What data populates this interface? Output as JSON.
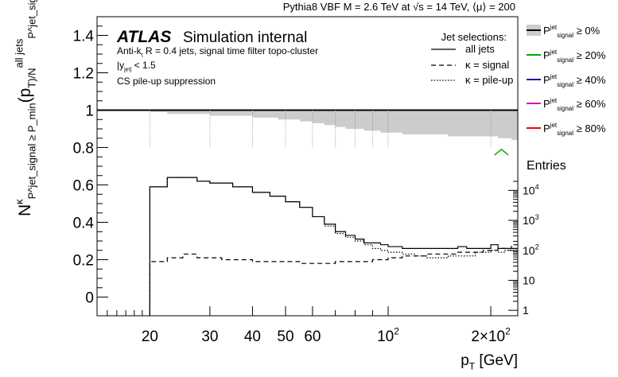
{
  "chart_data": {
    "type": "line",
    "header": "Pythia8 VBF M = 2.6 TeV at √s = 14 TeV, ⟨μ⟩ = 200",
    "title": "ATLAS",
    "subtitle": "Simulation internal",
    "info_lines": [
      "Anti-k_t R = 0.4 jets, signal time filter topo-cluster",
      "|y_jet| < 1.5",
      "CS pile-up suppression"
    ],
    "xlabel": "p_T [GeV]",
    "ylabel": "N^κ_{P^jet_signal ≥ P_min}(p_T)/N^{all jets}_{P^jet_signal ≥ 0}(p_T)",
    "x_scale": "log",
    "xlim": [
      14,
      240
    ],
    "ylim": [
      -0.1,
      1.5
    ],
    "x_ticks": [
      {
        "value": 20,
        "label": "20"
      },
      {
        "value": 30,
        "label": "30"
      },
      {
        "value": 40,
        "label": "40"
      },
      {
        "value": 50,
        "label": "50"
      },
      {
        "value": 60,
        "label": "60"
      },
      {
        "value": 100,
        "label": "10^2"
      },
      {
        "value": 200,
        "label": "2×10^2"
      }
    ],
    "y_ticks": [
      {
        "value": 0,
        "label": "0"
      },
      {
        "value": 0.2,
        "label": "0.2"
      },
      {
        "value": 0.4,
        "label": "0.4"
      },
      {
        "value": 0.6,
        "label": "0.6"
      },
      {
        "value": 0.8,
        "label": "0.8"
      },
      {
        "value": 1.0,
        "label": "1"
      },
      {
        "value": 1.2,
        "label": "1.2"
      },
      {
        "value": 1.4,
        "label": "1.4"
      }
    ],
    "reference_line": 1.0,
    "bin_edges": [
      20,
      22.5,
      25,
      27.5,
      30,
      32.5,
      35,
      37.5,
      40,
      42.5,
      45,
      47.5,
      50,
      55,
      60,
      65,
      70,
      75,
      80,
      85,
      90,
      95,
      100,
      110,
      120,
      130,
      140,
      150,
      160,
      170,
      180,
      190,
      200,
      210,
      220,
      230,
      240
    ],
    "series": [
      {
        "name": "all jets",
        "line_style": "solid",
        "color": "#000000",
        "values": [
          0.59,
          0.64,
          0.64,
          0.62,
          0.61,
          0.61,
          0.59,
          0.59,
          0.56,
          0.56,
          0.54,
          0.54,
          0.51,
          0.48,
          0.43,
          0.39,
          0.35,
          0.33,
          0.31,
          0.29,
          0.29,
          0.28,
          0.27,
          0.26,
          0.26,
          0.26,
          0.26,
          0.26,
          0.27,
          0.26,
          0.26,
          0.26,
          0.28,
          0.26,
          0.26,
          0.26
        ]
      },
      {
        "name": "κ = signal",
        "line_style": "dashed",
        "color": "#000000",
        "values": [
          0.19,
          0.21,
          0.23,
          0.21,
          0.21,
          0.2,
          0.2,
          0.2,
          0.19,
          0.19,
          0.19,
          0.19,
          0.19,
          0.18,
          0.18,
          0.18,
          0.19,
          0.19,
          0.19,
          0.19,
          0.2,
          0.2,
          0.21,
          0.22,
          0.22,
          0.23,
          0.23,
          0.23,
          0.24,
          0.24,
          0.24,
          0.25,
          0.25,
          0.26,
          0.26,
          0.28
        ]
      },
      {
        "name": "κ = pile-up",
        "line_style": "dotted",
        "color": "#000000",
        "values": [
          0.59,
          0.64,
          0.64,
          0.62,
          0.61,
          0.61,
          0.59,
          0.59,
          0.56,
          0.56,
          0.54,
          0.54,
          0.51,
          0.48,
          0.43,
          0.38,
          0.34,
          0.32,
          0.3,
          0.28,
          0.26,
          0.25,
          0.24,
          0.23,
          0.22,
          0.21,
          0.21,
          0.22,
          0.22,
          0.22,
          0.24,
          0.24,
          0.25,
          0.24,
          0.25,
          0.25
        ]
      }
    ],
    "band": {
      "label": "P^jet_signal ≥ 0%",
      "color": "#cccccc",
      "top": 1.0,
      "lower_values": [
        0.99,
        0.98,
        0.98,
        0.98,
        0.97,
        0.97,
        0.97,
        0.97,
        0.96,
        0.96,
        0.96,
        0.95,
        0.95,
        0.94,
        0.93,
        0.92,
        0.91,
        0.9,
        0.9,
        0.89,
        0.89,
        0.88,
        0.88,
        0.87,
        0.87,
        0.87,
        0.87,
        0.86,
        0.86,
        0.86,
        0.86,
        0.86,
        0.86,
        0.85,
        0.85,
        0.84
      ]
    },
    "green_feature": {
      "x": [
        205,
        215,
        225
      ],
      "y": [
        0.76,
        0.79,
        0.76
      ],
      "color": "#00aa00"
    },
    "legend_styles": {
      "title": "Jet selections:",
      "entries": [
        {
          "label": "all jets",
          "line_style": "solid"
        },
        {
          "label": "κ = signal",
          "line_style": "dashed"
        },
        {
          "label": "κ = pile-up",
          "line_style": "dotted"
        }
      ]
    },
    "legend_thresholds": [
      {
        "label": "P^jet_signal ≥ 0%",
        "color": "#000000",
        "fill": "#cccccc"
      },
      {
        "label": "P^jet_signal ≥ 20%",
        "color": "#00aa00"
      },
      {
        "label": "P^jet_signal ≥ 40%",
        "color": "#1a1aa6"
      },
      {
        "label": "P^jet_signal ≥ 60%",
        "color": "#cc00cc"
      },
      {
        "label": "P^jet_signal ≥ 80%",
        "color": "#ff0000"
      }
    ],
    "entries_axis": {
      "label": "Entries",
      "scale": "log",
      "ticks": [
        {
          "value": 1,
          "label": "1"
        },
        {
          "value": 10,
          "label": "10"
        },
        {
          "value": 100,
          "label": "10^2"
        },
        {
          "value": 1000,
          "label": "10^3"
        },
        {
          "value": 10000,
          "label": "10^4"
        }
      ]
    }
  }
}
